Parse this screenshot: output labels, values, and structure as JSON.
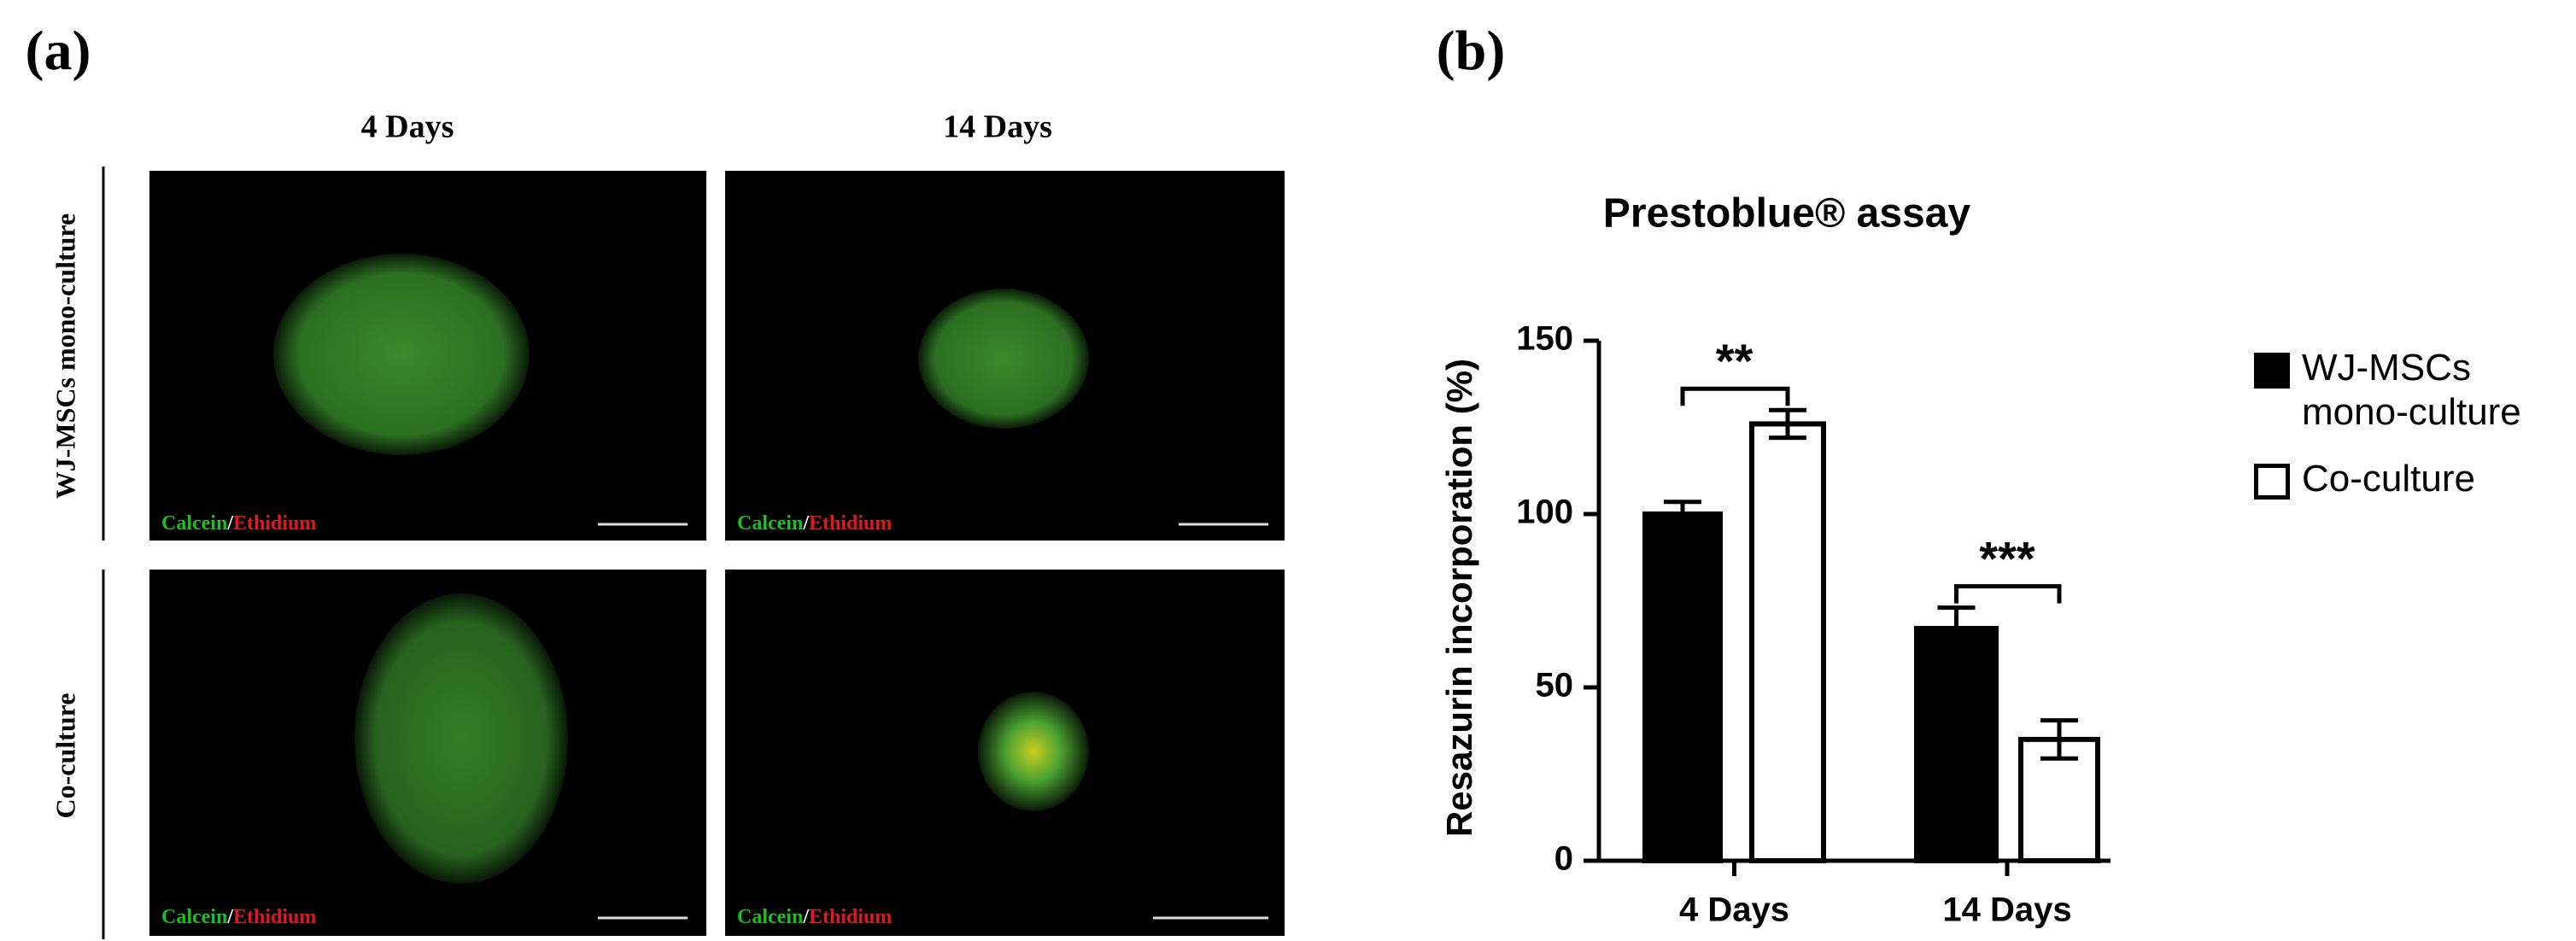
{
  "panel_a": {
    "label": "(a)",
    "columns": [
      "4 Days",
      "14 Days"
    ],
    "rows": [
      "WJ-MSCs mono-culture",
      "Co-culture"
    ],
    "stain": [
      "Calcein",
      "/",
      "Ethidium"
    ]
  },
  "chart_data": {
    "type": "bar",
    "label": "(b)",
    "title": "Prestoblue® assay",
    "y_label": "Resazurin incorporation (%)",
    "categories": [
      "4 Days",
      "14 Days"
    ],
    "series": [
      {
        "name": "WJ-MSCs mono-culture",
        "color": "#000000",
        "values": [
          100,
          67
        ],
        "errors": [
          3.5,
          6
        ]
      },
      {
        "name": "Co-culture",
        "color": "#ffffff",
        "values": [
          126,
          35
        ],
        "errors": [
          4,
          5.5
        ]
      }
    ],
    "ylim": [
      0,
      150
    ],
    "yticks": [
      0,
      50,
      100,
      150
    ],
    "annotations": [
      "**",
      "***"
    ]
  }
}
